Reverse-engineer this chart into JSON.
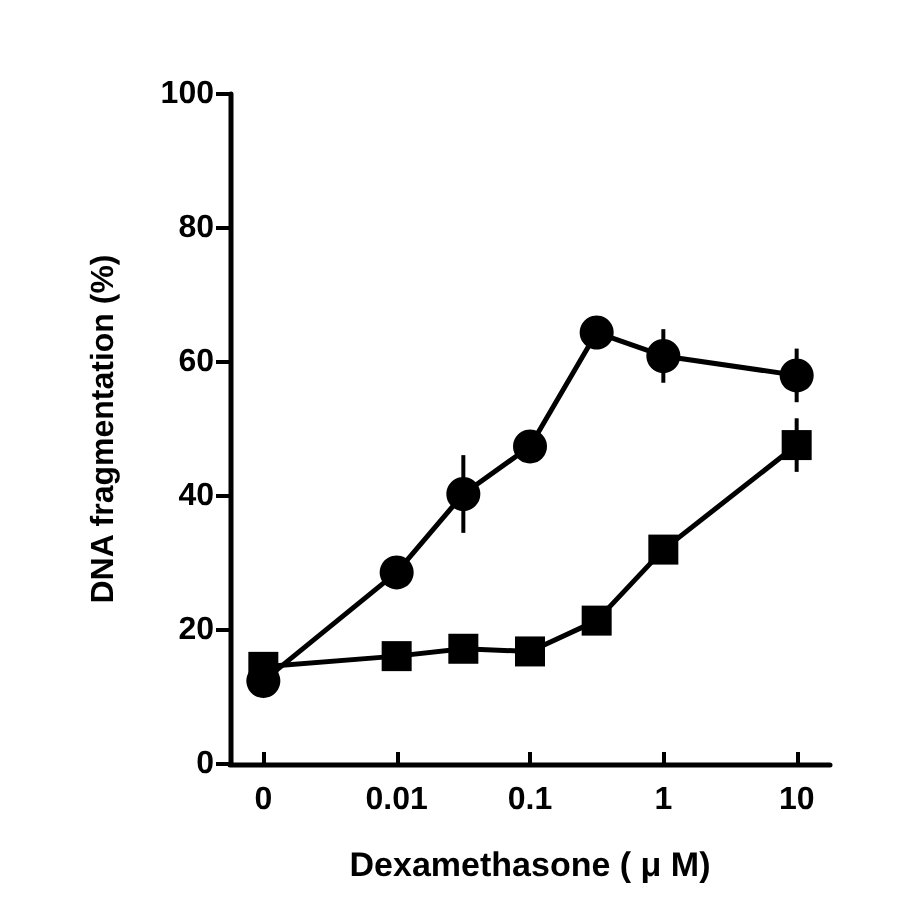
{
  "chart_data": {
    "type": "line",
    "xlabel": "Dexamethasone ( μ M)",
    "ylabel": "DNA fragmentation (%)",
    "categories": [
      "0",
      null,
      "0.01",
      null,
      "0.1",
      null,
      "1",
      null,
      "10"
    ],
    "ylim": [
      0,
      100
    ],
    "yticks": [
      0,
      20,
      40,
      60,
      80,
      100
    ],
    "grid": false,
    "series": [
      {
        "color": "#000000",
        "marker": "circle",
        "values": [
          12.4,
          null,
          28.6,
          40.3,
          47.4,
          64.4,
          60.9,
          null,
          58.0
        ],
        "errors": [
          null,
          null,
          null,
          5.8,
          null,
          null,
          4,
          null,
          4
        ]
      },
      {
        "color": "#000000",
        "marker": "square",
        "values": [
          14.5,
          null,
          16.1,
          17.2,
          16.8,
          21.4,
          32.0,
          null,
          47.6
        ],
        "errors": [
          null,
          null,
          null,
          null,
          null,
          null,
          null,
          null,
          4
        ]
      }
    ]
  }
}
